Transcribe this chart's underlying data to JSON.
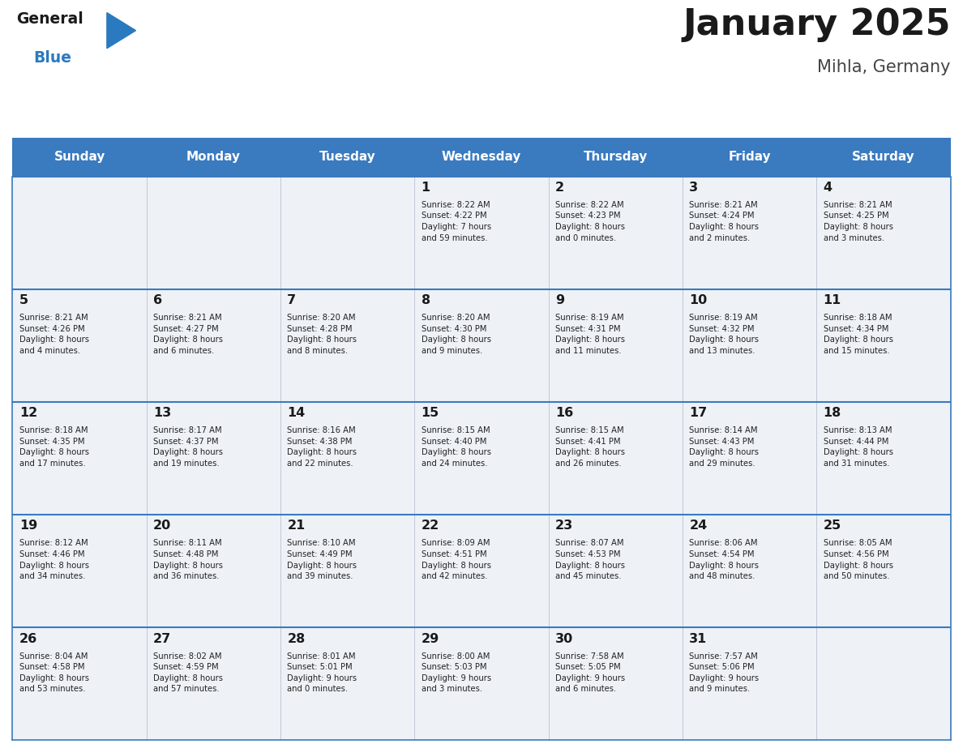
{
  "title": "January 2025",
  "subtitle": "Mihla, Germany",
  "header_color": "#3a7abf",
  "header_text_color": "#ffffff",
  "cell_bg_color": "#eef2f7",
  "border_color": "#3a7abf",
  "days_of_week": [
    "Sunday",
    "Monday",
    "Tuesday",
    "Wednesday",
    "Thursday",
    "Friday",
    "Saturday"
  ],
  "title_color": "#1a1a1a",
  "subtitle_color": "#444444",
  "day_num_color": "#1a1a1a",
  "info_color": "#222222",
  "calendar": [
    [
      {
        "day": null,
        "info": null
      },
      {
        "day": null,
        "info": null
      },
      {
        "day": null,
        "info": null
      },
      {
        "day": 1,
        "info": "Sunrise: 8:22 AM\nSunset: 4:22 PM\nDaylight: 7 hours\nand 59 minutes."
      },
      {
        "day": 2,
        "info": "Sunrise: 8:22 AM\nSunset: 4:23 PM\nDaylight: 8 hours\nand 0 minutes."
      },
      {
        "day": 3,
        "info": "Sunrise: 8:21 AM\nSunset: 4:24 PM\nDaylight: 8 hours\nand 2 minutes."
      },
      {
        "day": 4,
        "info": "Sunrise: 8:21 AM\nSunset: 4:25 PM\nDaylight: 8 hours\nand 3 minutes."
      }
    ],
    [
      {
        "day": 5,
        "info": "Sunrise: 8:21 AM\nSunset: 4:26 PM\nDaylight: 8 hours\nand 4 minutes."
      },
      {
        "day": 6,
        "info": "Sunrise: 8:21 AM\nSunset: 4:27 PM\nDaylight: 8 hours\nand 6 minutes."
      },
      {
        "day": 7,
        "info": "Sunrise: 8:20 AM\nSunset: 4:28 PM\nDaylight: 8 hours\nand 8 minutes."
      },
      {
        "day": 8,
        "info": "Sunrise: 8:20 AM\nSunset: 4:30 PM\nDaylight: 8 hours\nand 9 minutes."
      },
      {
        "day": 9,
        "info": "Sunrise: 8:19 AM\nSunset: 4:31 PM\nDaylight: 8 hours\nand 11 minutes."
      },
      {
        "day": 10,
        "info": "Sunrise: 8:19 AM\nSunset: 4:32 PM\nDaylight: 8 hours\nand 13 minutes."
      },
      {
        "day": 11,
        "info": "Sunrise: 8:18 AM\nSunset: 4:34 PM\nDaylight: 8 hours\nand 15 minutes."
      }
    ],
    [
      {
        "day": 12,
        "info": "Sunrise: 8:18 AM\nSunset: 4:35 PM\nDaylight: 8 hours\nand 17 minutes."
      },
      {
        "day": 13,
        "info": "Sunrise: 8:17 AM\nSunset: 4:37 PM\nDaylight: 8 hours\nand 19 minutes."
      },
      {
        "day": 14,
        "info": "Sunrise: 8:16 AM\nSunset: 4:38 PM\nDaylight: 8 hours\nand 22 minutes."
      },
      {
        "day": 15,
        "info": "Sunrise: 8:15 AM\nSunset: 4:40 PM\nDaylight: 8 hours\nand 24 minutes."
      },
      {
        "day": 16,
        "info": "Sunrise: 8:15 AM\nSunset: 4:41 PM\nDaylight: 8 hours\nand 26 minutes."
      },
      {
        "day": 17,
        "info": "Sunrise: 8:14 AM\nSunset: 4:43 PM\nDaylight: 8 hours\nand 29 minutes."
      },
      {
        "day": 18,
        "info": "Sunrise: 8:13 AM\nSunset: 4:44 PM\nDaylight: 8 hours\nand 31 minutes."
      }
    ],
    [
      {
        "day": 19,
        "info": "Sunrise: 8:12 AM\nSunset: 4:46 PM\nDaylight: 8 hours\nand 34 minutes."
      },
      {
        "day": 20,
        "info": "Sunrise: 8:11 AM\nSunset: 4:48 PM\nDaylight: 8 hours\nand 36 minutes."
      },
      {
        "day": 21,
        "info": "Sunrise: 8:10 AM\nSunset: 4:49 PM\nDaylight: 8 hours\nand 39 minutes."
      },
      {
        "day": 22,
        "info": "Sunrise: 8:09 AM\nSunset: 4:51 PM\nDaylight: 8 hours\nand 42 minutes."
      },
      {
        "day": 23,
        "info": "Sunrise: 8:07 AM\nSunset: 4:53 PM\nDaylight: 8 hours\nand 45 minutes."
      },
      {
        "day": 24,
        "info": "Sunrise: 8:06 AM\nSunset: 4:54 PM\nDaylight: 8 hours\nand 48 minutes."
      },
      {
        "day": 25,
        "info": "Sunrise: 8:05 AM\nSunset: 4:56 PM\nDaylight: 8 hours\nand 50 minutes."
      }
    ],
    [
      {
        "day": 26,
        "info": "Sunrise: 8:04 AM\nSunset: 4:58 PM\nDaylight: 8 hours\nand 53 minutes."
      },
      {
        "day": 27,
        "info": "Sunrise: 8:02 AM\nSunset: 4:59 PM\nDaylight: 8 hours\nand 57 minutes."
      },
      {
        "day": 28,
        "info": "Sunrise: 8:01 AM\nSunset: 5:01 PM\nDaylight: 9 hours\nand 0 minutes."
      },
      {
        "day": 29,
        "info": "Sunrise: 8:00 AM\nSunset: 5:03 PM\nDaylight: 9 hours\nand 3 minutes."
      },
      {
        "day": 30,
        "info": "Sunrise: 7:58 AM\nSunset: 5:05 PM\nDaylight: 9 hours\nand 6 minutes."
      },
      {
        "day": 31,
        "info": "Sunrise: 7:57 AM\nSunset: 5:06 PM\nDaylight: 9 hours\nand 9 minutes."
      },
      {
        "day": null,
        "info": null
      }
    ]
  ],
  "logo_general_color": "#1a1a1a",
  "logo_blue_color": "#2a7abf",
  "logo_triangle_color": "#2a7abf",
  "fig_width": 11.88,
  "fig_height": 9.18,
  "dpi": 100
}
